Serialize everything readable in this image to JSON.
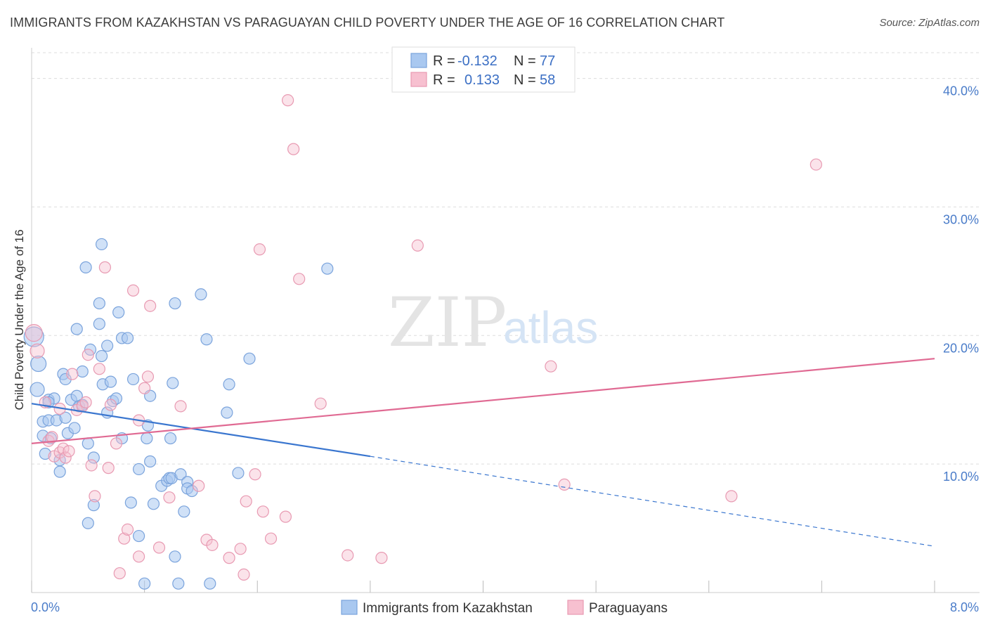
{
  "title": "IMMIGRANTS FROM KAZAKHSTAN VS PARAGUAYAN CHILD POVERTY UNDER THE AGE OF 16 CORRELATION CHART",
  "source": "Source: ZipAtlas.com",
  "watermark": {
    "zip": "ZIP",
    "atlas": "atlas"
  },
  "colors": {
    "blue_fill": "#a9c8f0",
    "blue_stroke": "#7aa3dc",
    "blue_line": "#3a76cf",
    "pink_fill": "#f7c0d0",
    "pink_stroke": "#e89ab2",
    "pink_line": "#e06a93",
    "grid": "#dddddd",
    "tick_text": "#4a7cc9"
  },
  "legend": {
    "rows": [
      {
        "r_label": "R =",
        "r_value": "-0.132",
        "n_label": "N =",
        "n_value": "77"
      },
      {
        "r_label": "R =",
        "r_value": "0.133",
        "n_label": "N =",
        "n_value": "58"
      }
    ]
  },
  "chart_data": {
    "type": "scatter",
    "title": "IMMIGRANTS FROM KAZAKHSTAN VS PARAGUAYAN CHILD POVERTY UNDER THE AGE OF 16 CORRELATION CHART",
    "xlabel": "",
    "ylabel": "Child Poverty Under the Age of 16",
    "xlim": [
      0,
      8
    ],
    "ylim": [
      0,
      42
    ],
    "x_tick_labels": [
      "0.0%",
      "8.0%"
    ],
    "y_ticks": [
      10,
      20,
      30,
      40
    ],
    "y_tick_labels": [
      "10.0%",
      "20.0%",
      "30.0%",
      "40.0%"
    ],
    "grid": true,
    "legend_position": "top-center",
    "series": [
      {
        "name": "Immigrants from Kazakhstan",
        "color": "blue",
        "trend": {
          "x_start": 0.0,
          "y_start": 14.7,
          "x_solid_end": 3.0,
          "y_solid_end": 10.6,
          "x_end": 8.0,
          "y_end": 3.6
        },
        "points": [
          [
            0.02,
            19.9,
            14
          ],
          [
            0.05,
            15.8,
            10
          ],
          [
            0.06,
            17.8,
            11
          ],
          [
            0.1,
            12.2,
            8
          ],
          [
            0.1,
            13.3,
            8
          ],
          [
            0.12,
            10.8,
            8
          ],
          [
            0.15,
            13.4,
            8
          ],
          [
            0.15,
            15.0,
            8
          ],
          [
            0.17,
            12.0,
            8
          ],
          [
            0.2,
            15.1,
            8
          ],
          [
            0.22,
            13.4,
            8
          ],
          [
            0.25,
            9.4,
            8
          ],
          [
            0.25,
            10.3,
            8
          ],
          [
            0.28,
            17.0,
            8
          ],
          [
            0.3,
            16.6,
            8
          ],
          [
            0.32,
            12.4,
            8
          ],
          [
            0.35,
            15.0,
            8
          ],
          [
            0.38,
            12.8,
            8
          ],
          [
            0.4,
            15.3,
            8
          ],
          [
            0.4,
            20.5,
            8
          ],
          [
            0.42,
            14.5,
            8
          ],
          [
            0.45,
            17.2,
            8
          ],
          [
            0.48,
            25.3,
            8
          ],
          [
            0.5,
            11.6,
            8
          ],
          [
            0.5,
            5.4,
            8
          ],
          [
            0.52,
            18.9,
            8
          ],
          [
            0.55,
            10.5,
            8
          ],
          [
            0.55,
            6.8,
            8
          ],
          [
            0.6,
            20.9,
            8
          ],
          [
            0.6,
            22.5,
            8
          ],
          [
            0.62,
            18.4,
            8
          ],
          [
            0.62,
            27.1,
            8
          ],
          [
            0.63,
            16.2,
            8
          ],
          [
            0.67,
            14.0,
            8
          ],
          [
            0.67,
            19.2,
            8
          ],
          [
            0.7,
            16.4,
            8
          ],
          [
            0.72,
            14.9,
            8
          ],
          [
            0.75,
            15.1,
            8
          ],
          [
            0.77,
            21.8,
            8
          ],
          [
            0.8,
            19.8,
            8
          ],
          [
            0.8,
            12.0,
            8
          ],
          [
            0.85,
            19.8,
            8
          ],
          [
            0.88,
            7.0,
            8
          ],
          [
            0.9,
            16.6,
            8
          ],
          [
            0.95,
            9.6,
            8
          ],
          [
            0.95,
            4.4,
            8
          ],
          [
            1.0,
            0.7,
            8
          ],
          [
            1.02,
            12.0,
            8
          ],
          [
            1.03,
            13.0,
            8
          ],
          [
            1.05,
            10.2,
            8
          ],
          [
            1.05,
            15.3,
            8
          ],
          [
            1.08,
            6.9,
            8
          ],
          [
            1.15,
            8.3,
            8
          ],
          [
            1.2,
            8.7,
            8
          ],
          [
            1.22,
            8.9,
            8
          ],
          [
            1.23,
            12.0,
            8
          ],
          [
            1.24,
            8.9,
            8
          ],
          [
            1.25,
            16.3,
            8
          ],
          [
            1.27,
            2.8,
            8
          ],
          [
            1.27,
            22.5,
            8
          ],
          [
            1.3,
            0.7,
            8
          ],
          [
            1.32,
            9.2,
            8
          ],
          [
            1.35,
            6.3,
            8
          ],
          [
            1.38,
            8.6,
            8
          ],
          [
            1.38,
            8.1,
            8
          ],
          [
            1.42,
            7.9,
            8
          ],
          [
            1.5,
            23.2,
            8
          ],
          [
            1.55,
            19.7,
            8
          ],
          [
            1.58,
            0.7,
            8
          ],
          [
            1.73,
            14.0,
            8
          ],
          [
            1.75,
            16.2,
            8
          ],
          [
            1.83,
            9.3,
            8
          ],
          [
            1.93,
            18.2,
            8
          ],
          [
            2.62,
            25.2,
            8
          ],
          [
            0.15,
            14.8,
            8
          ],
          [
            0.3,
            13.6,
            8
          ],
          [
            0.45,
            14.6,
            8
          ]
        ]
      },
      {
        "name": "Paraguayans",
        "color": "pink",
        "trend": {
          "x_start": 0.0,
          "y_start": 11.6,
          "x_end": 8.0,
          "y_end": 18.2
        },
        "points": [
          [
            0.02,
            20.2,
            12
          ],
          [
            0.05,
            18.8,
            10
          ],
          [
            0.12,
            14.8,
            8
          ],
          [
            0.15,
            11.8,
            8
          ],
          [
            0.18,
            12.1,
            8
          ],
          [
            0.2,
            10.6,
            8
          ],
          [
            0.25,
            14.3,
            8
          ],
          [
            0.25,
            10.9,
            8
          ],
          [
            0.28,
            11.2,
            8
          ],
          [
            0.3,
            10.5,
            8
          ],
          [
            0.33,
            11.0,
            8
          ],
          [
            0.36,
            17.0,
            8
          ],
          [
            0.4,
            14.2,
            8
          ],
          [
            0.45,
            14.5,
            8
          ],
          [
            0.48,
            14.8,
            8
          ],
          [
            0.5,
            18.5,
            8
          ],
          [
            0.53,
            9.9,
            8
          ],
          [
            0.56,
            7.5,
            8
          ],
          [
            0.6,
            17.4,
            8
          ],
          [
            0.65,
            25.3,
            8
          ],
          [
            0.68,
            9.7,
            8
          ],
          [
            0.7,
            14.6,
            8
          ],
          [
            0.75,
            11.6,
            8
          ],
          [
            0.78,
            1.5,
            8
          ],
          [
            0.82,
            4.2,
            8
          ],
          [
            0.85,
            4.9,
            8
          ],
          [
            0.9,
            23.5,
            8
          ],
          [
            0.95,
            2.8,
            8
          ],
          [
            0.95,
            13.4,
            8
          ],
          [
            1.0,
            15.9,
            8
          ],
          [
            1.03,
            16.8,
            8
          ],
          [
            1.05,
            22.3,
            8
          ],
          [
            1.13,
            3.5,
            8
          ],
          [
            1.22,
            7.4,
            8
          ],
          [
            1.32,
            14.5,
            8
          ],
          [
            1.48,
            8.3,
            8
          ],
          [
            1.55,
            4.1,
            8
          ],
          [
            1.6,
            3.7,
            8
          ],
          [
            1.75,
            2.7,
            8
          ],
          [
            1.85,
            3.4,
            8
          ],
          [
            1.88,
            1.4,
            8
          ],
          [
            1.9,
            7.1,
            8
          ],
          [
            1.98,
            9.2,
            8
          ],
          [
            2.02,
            26.7,
            8
          ],
          [
            2.05,
            6.3,
            8
          ],
          [
            2.12,
            4.2,
            8
          ],
          [
            2.25,
            5.9,
            8
          ],
          [
            2.27,
            38.3,
            8
          ],
          [
            2.32,
            34.5,
            8
          ],
          [
            2.37,
            24.4,
            8
          ],
          [
            2.56,
            14.7,
            8
          ],
          [
            2.8,
            2.9,
            8
          ],
          [
            3.1,
            2.7,
            8
          ],
          [
            3.42,
            27.0,
            8
          ],
          [
            4.6,
            17.6,
            8
          ],
          [
            4.72,
            8.4,
            8
          ],
          [
            6.2,
            7.5,
            8
          ],
          [
            6.95,
            33.3,
            8
          ]
        ]
      }
    ]
  }
}
